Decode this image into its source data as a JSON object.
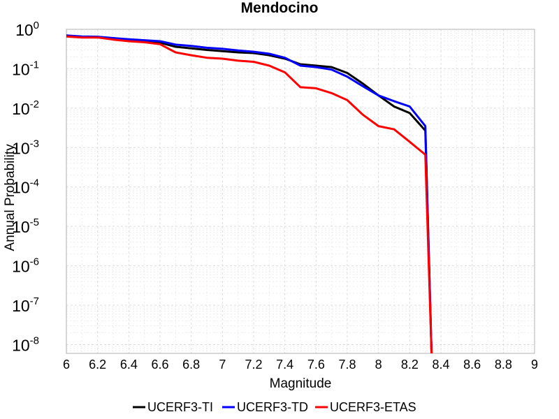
{
  "chart_data": {
    "type": "line",
    "title": "Mendocino",
    "xlabel": "Magnitude",
    "ylabel": "Annual Probability",
    "xlim": [
      6,
      9
    ],
    "ylim": [
      6e-09,
      1
    ],
    "y_scale": "log",
    "grid": true,
    "legend_position": "bottom",
    "x_ticks": [
      "6",
      "6.2",
      "6.4",
      "6.6",
      "6.8",
      "7",
      "7.2",
      "7.4",
      "7.6",
      "7.8",
      "8",
      "8.2",
      "8.4",
      "8.6",
      "8.8",
      "9"
    ],
    "y_ticks": [
      {
        "base": "10",
        "exp": "0"
      },
      {
        "base": "10",
        "exp": "-1"
      },
      {
        "base": "10",
        "exp": "-2"
      },
      {
        "base": "10",
        "exp": "-3"
      },
      {
        "base": "10",
        "exp": "-4"
      },
      {
        "base": "10",
        "exp": "-5"
      },
      {
        "base": "10",
        "exp": "-6"
      },
      {
        "base": "10",
        "exp": "-7"
      },
      {
        "base": "10",
        "exp": "-8"
      }
    ],
    "series": [
      {
        "name": "UCERF3-TI",
        "color": "#000000",
        "x": [
          6.0,
          6.1,
          6.2,
          6.3,
          6.4,
          6.5,
          6.6,
          6.7,
          6.8,
          6.9,
          7.0,
          7.1,
          7.2,
          7.3,
          7.4,
          7.5,
          7.6,
          7.7,
          7.8,
          7.9,
          8.0,
          8.1,
          8.2,
          8.3,
          8.34
        ],
        "y": [
          0.68,
          0.64,
          0.63,
          0.58,
          0.54,
          0.5,
          0.46,
          0.36,
          0.33,
          0.3,
          0.28,
          0.26,
          0.25,
          0.22,
          0.18,
          0.13,
          0.12,
          0.11,
          0.078,
          0.042,
          0.021,
          0.011,
          0.0075,
          0.0027,
          6e-09
        ]
      },
      {
        "name": "UCERF3-TD",
        "color": "#0000ff",
        "x": [
          6.0,
          6.1,
          6.2,
          6.3,
          6.4,
          6.5,
          6.6,
          6.7,
          6.8,
          6.9,
          7.0,
          7.1,
          7.2,
          7.3,
          7.4,
          7.5,
          7.6,
          7.7,
          7.8,
          7.9,
          8.0,
          8.1,
          8.2,
          8.3,
          8.34
        ],
        "y": [
          0.7,
          0.66,
          0.65,
          0.6,
          0.56,
          0.53,
          0.5,
          0.41,
          0.38,
          0.34,
          0.32,
          0.29,
          0.27,
          0.24,
          0.19,
          0.12,
          0.11,
          0.095,
          0.063,
          0.036,
          0.021,
          0.015,
          0.011,
          0.0035,
          6e-09
        ]
      },
      {
        "name": "UCERF3-ETAS",
        "color": "#ff0000",
        "x": [
          6.0,
          6.1,
          6.2,
          6.3,
          6.4,
          6.5,
          6.6,
          6.7,
          6.8,
          6.9,
          7.0,
          7.1,
          7.2,
          7.3,
          7.4,
          7.5,
          7.6,
          7.7,
          7.8,
          7.9,
          8.0,
          8.1,
          8.2,
          8.3,
          8.34
        ],
        "y": [
          0.66,
          0.62,
          0.62,
          0.55,
          0.5,
          0.47,
          0.42,
          0.26,
          0.22,
          0.19,
          0.18,
          0.16,
          0.15,
          0.12,
          0.081,
          0.034,
          0.032,
          0.024,
          0.016,
          0.0068,
          0.0035,
          0.0029,
          0.0014,
          0.00066,
          6e-09
        ]
      }
    ]
  }
}
